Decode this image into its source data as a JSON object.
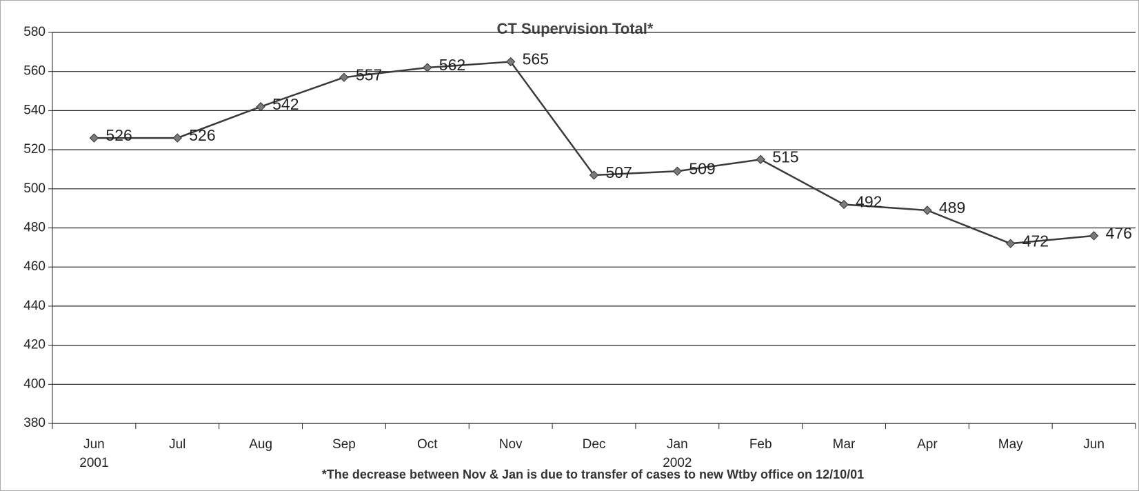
{
  "chart_data": {
    "type": "line",
    "title": "CT Supervision Total*",
    "categories": [
      "Jun",
      "Jul",
      "Aug",
      "Sep",
      "Oct",
      "Nov",
      "Dec",
      "Jan",
      "Feb",
      "Mar",
      "Apr",
      "May",
      "Jun"
    ],
    "category_years": [
      "2001",
      null,
      null,
      null,
      null,
      null,
      null,
      "2002",
      null,
      null,
      null,
      null,
      null
    ],
    "values": [
      526,
      526,
      542,
      557,
      562,
      565,
      507,
      509,
      515,
      492,
      489,
      472,
      476
    ],
    "color": "#3a3a3a",
    "marker_color": "#7a7a7a",
    "ylim": [
      380,
      580
    ],
    "yticks": [
      380,
      400,
      420,
      440,
      460,
      480,
      500,
      520,
      540,
      560,
      580
    ],
    "grid": true,
    "annotation": "*The decrease between Nov & Jan is due to transfer of cases to new Wtby office on 12/10/01"
  }
}
